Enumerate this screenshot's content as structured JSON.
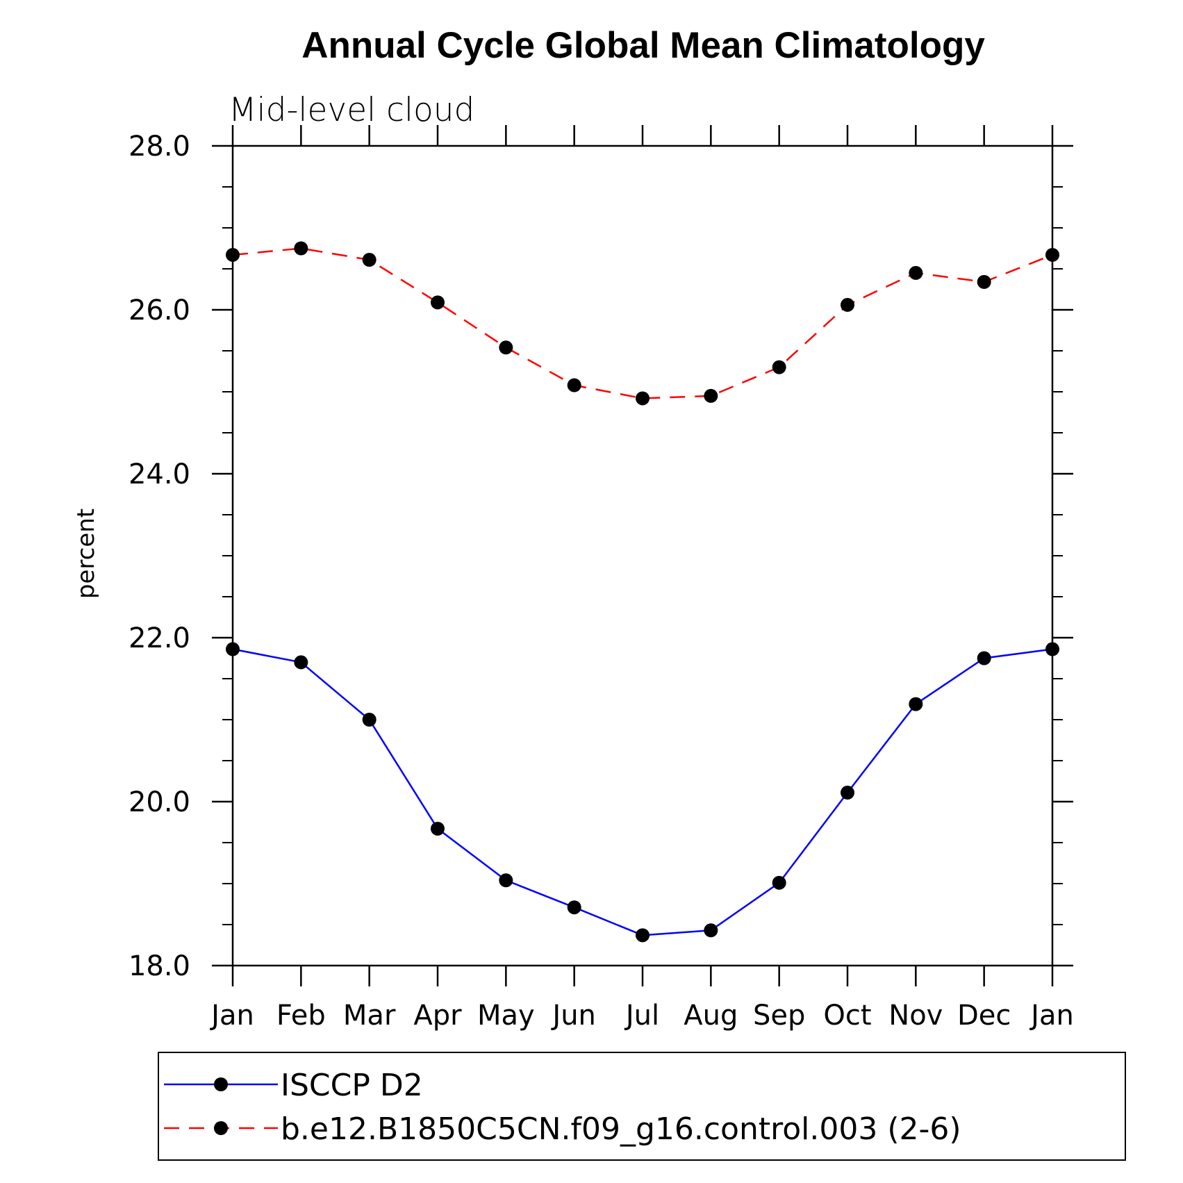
{
  "chart_data": {
    "type": "line",
    "title": "Annual Cycle Global Mean Climatology",
    "subtitle": "Mid-level cloud",
    "xlabel": "",
    "ylabel": "percent",
    "categories": [
      "Jan",
      "Feb",
      "Mar",
      "Apr",
      "May",
      "Jun",
      "Jul",
      "Aug",
      "Sep",
      "Oct",
      "Nov",
      "Dec",
      "Jan"
    ],
    "ylim": [
      18.0,
      28.0
    ],
    "yticks": [
      "18.0",
      "20.0",
      "22.0",
      "24.0",
      "26.0",
      "28.0"
    ],
    "grid": false,
    "legend_position": "bottom",
    "series": [
      {
        "name": "ISCCP D2",
        "color": "#0000ff",
        "line_style": "solid",
        "marker": "filled-circle",
        "values": [
          21.86,
          21.7,
          21.0,
          19.67,
          19.04,
          18.71,
          18.37,
          18.43,
          19.01,
          20.11,
          21.19,
          21.75,
          21.86
        ]
      },
      {
        "name": "b.e12.B1850C5CN.f09_g16.control.003 (2-6)",
        "color": "#ff0000",
        "line_style": "dashed",
        "marker": "filled-circle",
        "values": [
          26.67,
          26.75,
          26.61,
          26.09,
          25.54,
          25.08,
          24.92,
          24.95,
          25.3,
          26.06,
          26.45,
          26.34,
          26.67
        ]
      }
    ]
  }
}
